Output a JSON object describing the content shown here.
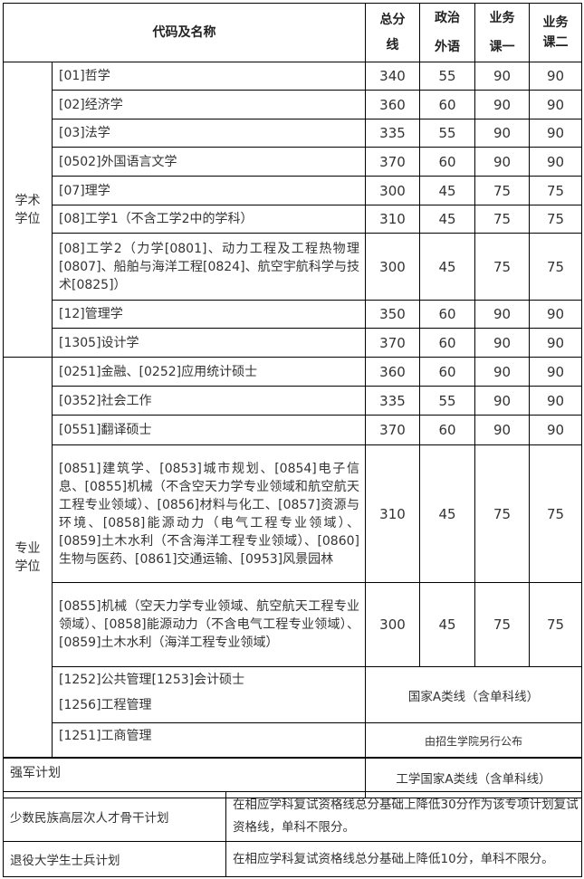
{
  "header": {
    "name": "代码及名称",
    "total": "总分线",
    "politics": "政治外语",
    "course1": "业务课一",
    "course2": "业务课二"
  },
  "groups": [
    {
      "category": "学术学位",
      "rows": [
        {
          "name": "[01]哲学",
          "total": "340",
          "politics": "55",
          "course1": "90",
          "course2": "90"
        },
        {
          "name": "[02]经济学",
          "total": "360",
          "politics": "60",
          "course1": "90",
          "course2": "90"
        },
        {
          "name": "[03]法学",
          "total": "335",
          "politics": "55",
          "course1": "90",
          "course2": "90"
        },
        {
          "name": "[0502]外国语言文学",
          "total": "370",
          "politics": "60",
          "course1": "90",
          "course2": "90"
        },
        {
          "name": "[07]理学",
          "total": "300",
          "politics": "45",
          "course1": "75",
          "course2": "75"
        },
        {
          "name": "[08]工学1（不含工学2中的学科）",
          "total": "310",
          "politics": "45",
          "course1": "75",
          "course2": "75"
        },
        {
          "name": "[08]工学2（力学[0801]、动力工程及工程热物理[0807]、船舶与海洋工程[0824]、航空宇航科学与技术[0825]）",
          "total": "300",
          "politics": "45",
          "course1": "75",
          "course2": "75"
        },
        {
          "name": "[12]管理学",
          "total": "350",
          "politics": "60",
          "course1": "90",
          "course2": "90"
        },
        {
          "name": "[1305]设计学",
          "total": "370",
          "politics": "60",
          "course1": "90",
          "course2": "90"
        }
      ]
    },
    {
      "category": "专业学位",
      "rows": [
        {
          "name": "[0251]金融、[0252]应用统计硕士",
          "total": "360",
          "politics": "60",
          "course1": "90",
          "course2": "90"
        },
        {
          "name": "[0352]社会工作",
          "total": "335",
          "politics": "55",
          "course1": "90",
          "course2": "90"
        },
        {
          "name": "[0551]翻译硕士",
          "total": "370",
          "politics": "60",
          "course1": "90",
          "course2": "90"
        },
        {
          "name": "[0851]建筑学、[0853]城市规划、[0854]电子信息、[0855]机械（不含空天力学专业领域和航空航天工程专业领域）、[0856]材料与化工、[0857]资源与环境、[0858]能源动力（电气工程专业领域）、[0859]土木水利（不含海洋工程专业领域）、[0860]生物与医药、[0861]交通运输、[0953]风景园林",
          "total": "310",
          "politics": "45",
          "course1": "75",
          "course2": "75"
        },
        {
          "name": "[0855]机械（空天力学专业领域、航空航天工程专业领域）、[0858]能源动力（不含电气工程专业领域）、[0859]土木水利（海洋工程专业领域）",
          "total": "300",
          "politics": "45",
          "course1": "75",
          "course2": "75"
        },
        {
          "name": "[1252]公共管理[1253]会计硕士",
          "name2": "[1256]工程管理",
          "note": "国家A类线（含单科线）"
        },
        {
          "name": "[1251]工商管理",
          "note": "由招生学院另行公布"
        }
      ]
    }
  ],
  "special": {
    "army": {
      "label": "强军计划",
      "value": "工学国家A类线（含单科线）"
    },
    "minority": {
      "label": "少数民族高层次人才骨干计划",
      "value": "在相应学科复试资格线总分基础上降低30分作为该专项计划复试资格线，单科不限分。"
    },
    "veteran": {
      "label": "退役大学生士兵计划",
      "value": "在相应学科复试资格线总分基础上降低10分，单科不限分。"
    }
  }
}
